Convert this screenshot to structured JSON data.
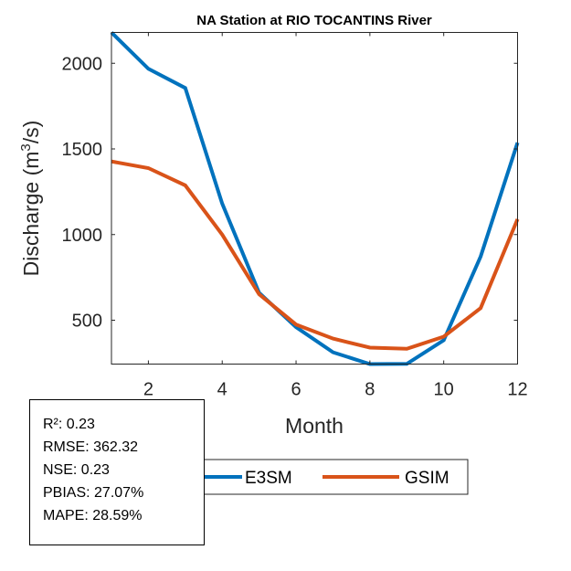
{
  "chart_data": {
    "type": "line",
    "title": "NA  Station at  RIO TOCANTINS  River",
    "xlabel": "Month",
    "ylabel": "Discharge (m³/s)",
    "ylabel_parts": {
      "pre": "Discharge (m",
      "sup": "3",
      "post": "/s)"
    },
    "x": [
      1,
      2,
      3,
      4,
      5,
      6,
      7,
      8,
      9,
      10,
      11,
      12
    ],
    "xlim": [
      1,
      12
    ],
    "ylim": [
      244,
      2180
    ],
    "xticks": [
      2,
      4,
      6,
      8,
      10,
      12
    ],
    "yticks": [
      500,
      1000,
      1500,
      2000
    ],
    "grid": false,
    "series": [
      {
        "name": "E3SM",
        "color": "#0072BD",
        "values": [
          2180,
          1968,
          1856,
          1181,
          660,
          460,
          313,
          244,
          245,
          383,
          872,
          1537
        ]
      },
      {
        "name": "GSIM",
        "color": "#D95319",
        "values": [
          1427,
          1388,
          1287,
          1000,
          652,
          475,
          393,
          340,
          333,
          404,
          571,
          1090
        ]
      }
    ],
    "legend": {
      "placement": "bottom-center",
      "orientation": "horizontal"
    }
  },
  "stats": [
    "R²: 0.23",
    "RMSE: 362.32",
    "NSE: 0.23",
    "PBIAS: 27.07%",
    "MAPE: 28.59%"
  ]
}
